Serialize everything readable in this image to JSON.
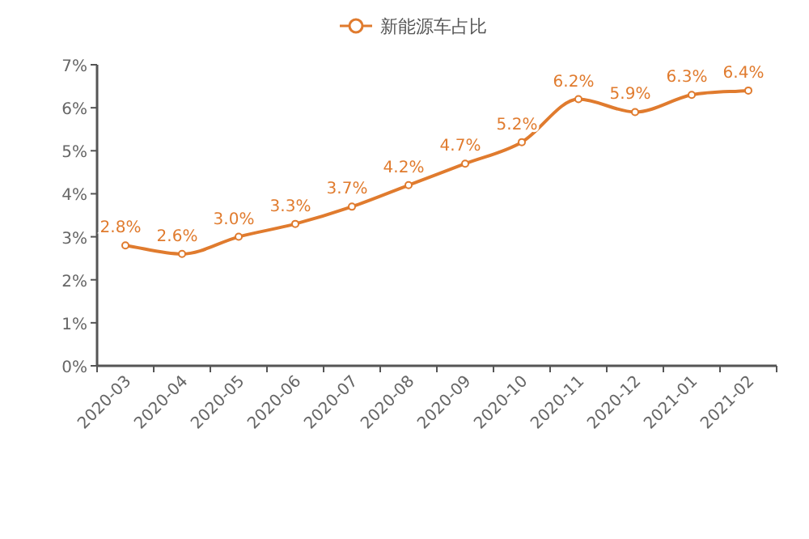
{
  "chart_data": {
    "type": "line",
    "categories": [
      "2020-03",
      "2020-04",
      "2020-05",
      "2020-06",
      "2020-07",
      "2020-08",
      "2020-09",
      "2020-10",
      "2020-11",
      "2020-12",
      "2021-01",
      "2021-02"
    ],
    "series": [
      {
        "name": "新能源车占比",
        "color": "#e07b2e",
        "values": [
          2.8,
          2.6,
          3.0,
          3.3,
          3.7,
          4.2,
          4.7,
          5.2,
          6.2,
          5.9,
          6.3,
          6.4
        ],
        "value_labels": [
          "2.8%",
          "2.6%",
          "3.0%",
          "3.3%",
          "3.7%",
          "4.2%",
          "4.7%",
          "5.2%",
          "6.2%",
          "5.9%",
          "6.3%",
          "6.4%"
        ]
      }
    ],
    "ylim": [
      0,
      7
    ],
    "yticks": [
      {
        "value": 0,
        "label": "0%"
      },
      {
        "value": 1,
        "label": "1%"
      },
      {
        "value": 2,
        "label": "2%"
      },
      {
        "value": 3,
        "label": "3%"
      },
      {
        "value": 4,
        "label": "4%"
      },
      {
        "value": 5,
        "label": "5%"
      },
      {
        "value": 6,
        "label": "6%"
      },
      {
        "value": 7,
        "label": "7%"
      }
    ],
    "legend": "top",
    "marker": "circle",
    "line_style": "solid",
    "grid": false
  }
}
